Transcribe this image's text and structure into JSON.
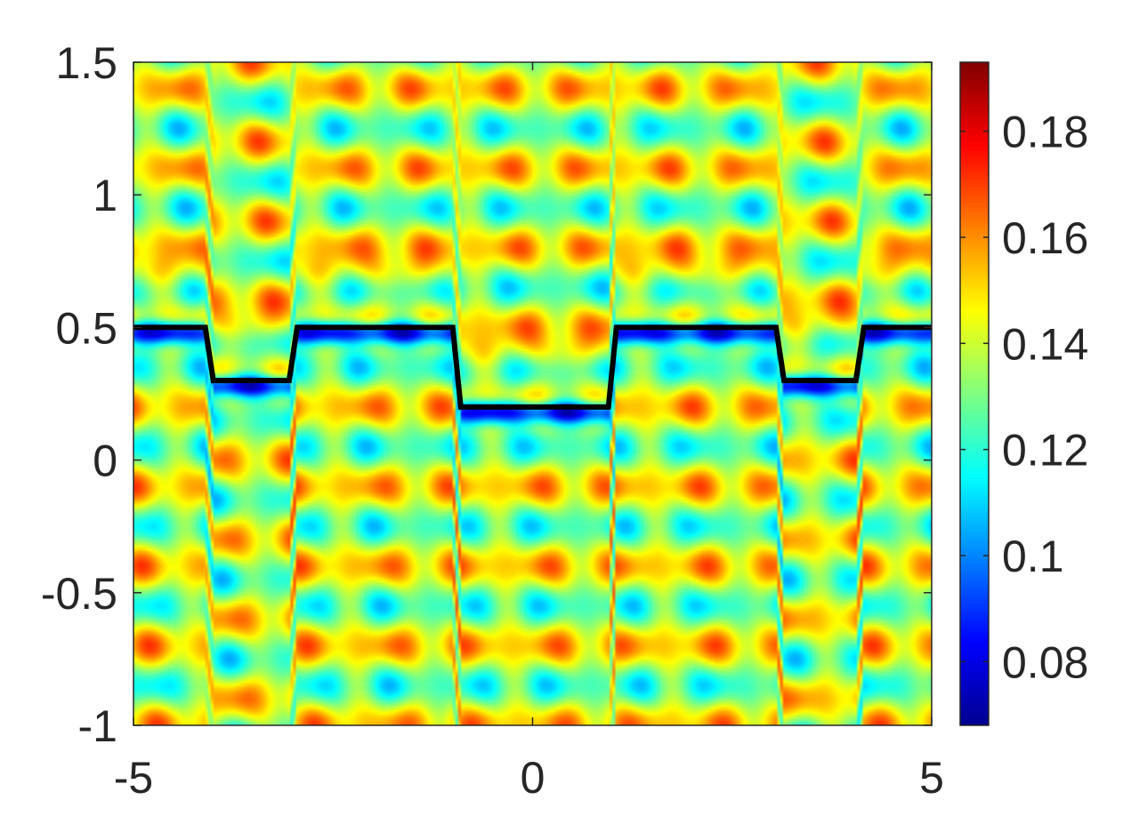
{
  "chart_data": {
    "type": "heatmap",
    "title": "",
    "xlabel": "",
    "ylabel": "",
    "xlim": [
      -5,
      5
    ],
    "ylim": [
      -1,
      1.5
    ],
    "x_ticks": [
      -5,
      0,
      5
    ],
    "x_tick_labels": [
      "-5",
      "0",
      "5"
    ],
    "y_ticks": [
      -1,
      -0.5,
      0,
      0.5,
      1,
      1.5
    ],
    "y_tick_labels": [
      "-1",
      "-0.5",
      "0",
      "0.5",
      "1",
      "1.5"
    ],
    "colormap": "jet",
    "color_range": [
      0.068,
      0.193
    ],
    "colorbar_ticks": [
      0.08,
      0.1,
      0.12,
      0.14,
      0.16,
      0.18
    ],
    "colorbar_tick_labels": [
      "0.08",
      "0.1",
      "0.12",
      "0.14",
      "0.16",
      "0.18"
    ],
    "grid": false,
    "colors": {
      "interface_line": "#000000",
      "axis": "#262626",
      "background": "#ffffff"
    },
    "interface_line": {
      "x": [
        -5,
        -4.1,
        -4.0,
        -3.05,
        -2.95,
        -1.0,
        -0.9,
        0.95,
        1.05,
        3.05,
        3.15,
        4.05,
        4.15,
        5
      ],
      "y": [
        0.5,
        0.5,
        0.3,
        0.3,
        0.5,
        0.5,
        0.2,
        0.2,
        0.5,
        0.5,
        0.3,
        0.3,
        0.5,
        0.5
      ]
    }
  }
}
